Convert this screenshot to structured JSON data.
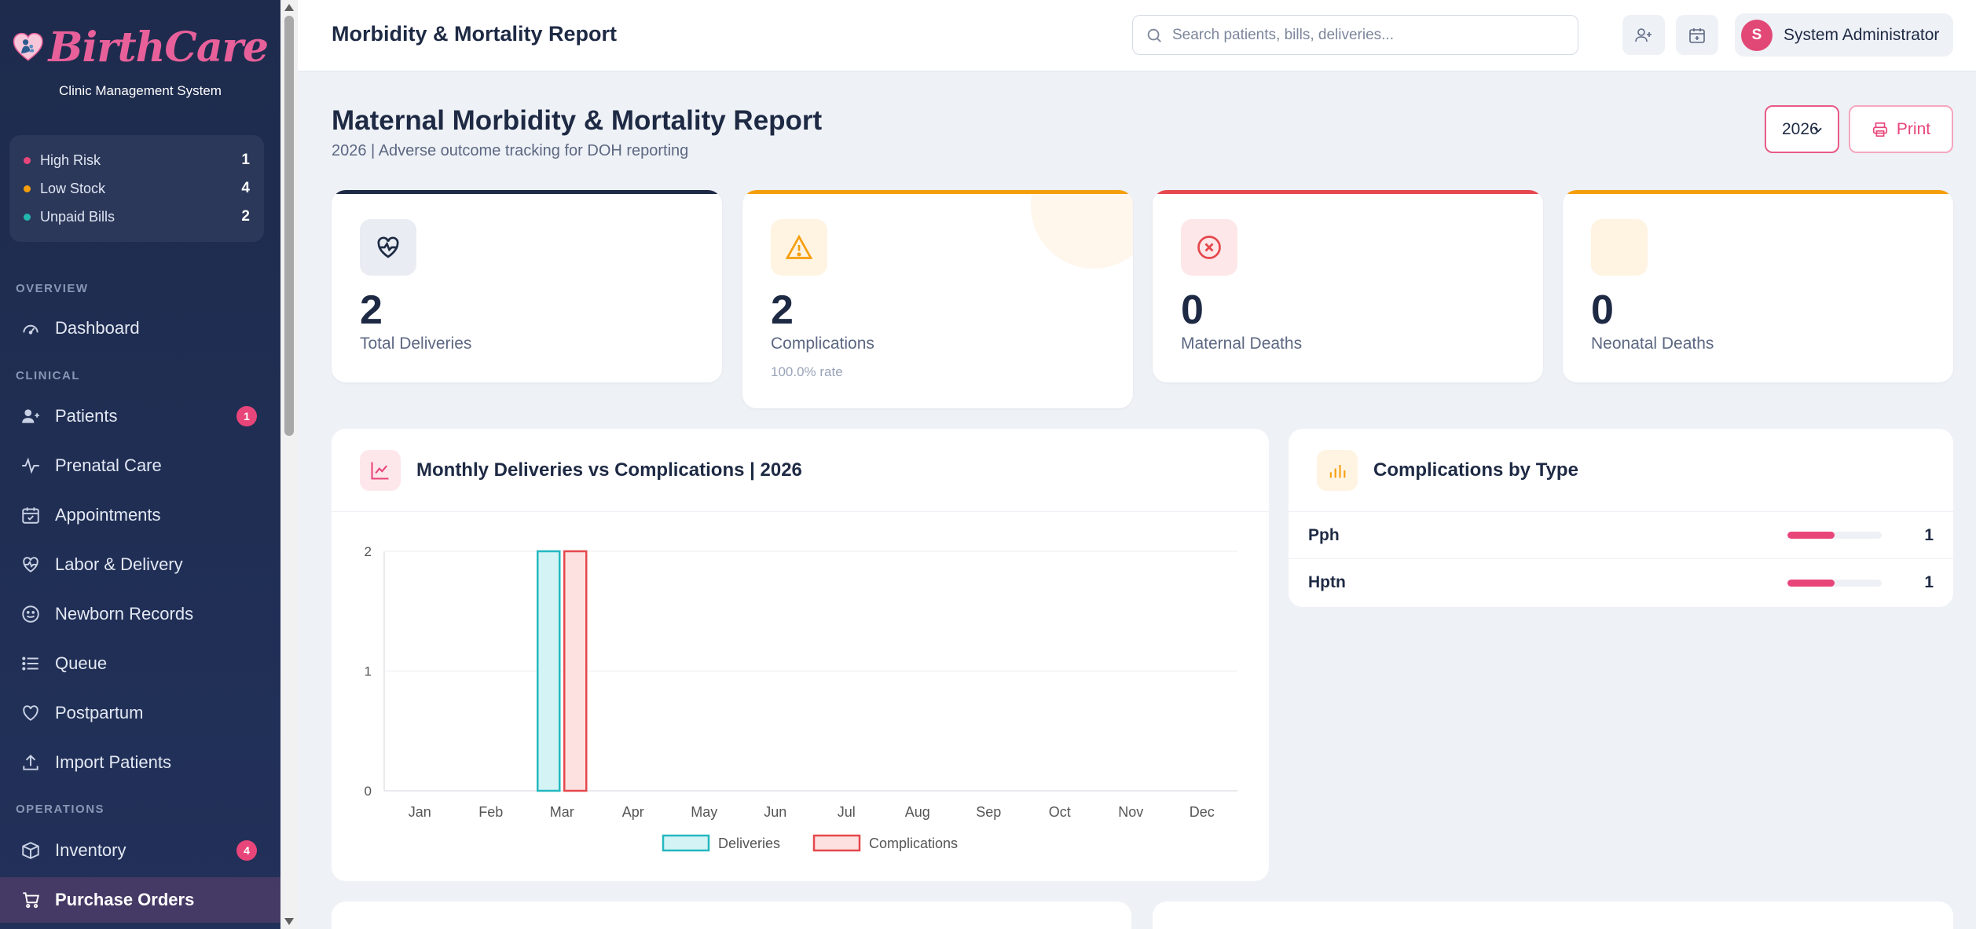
{
  "app": {
    "brand": "BirthCare",
    "subtitle": "Clinic Management System"
  },
  "alerts": [
    {
      "label": "High Risk",
      "count": "1",
      "color": "#e8467a"
    },
    {
      "label": "Low Stock",
      "count": "4",
      "color": "#f59e0b"
    },
    {
      "label": "Unpaid Bills",
      "count": "2",
      "color": "#22b8b0"
    }
  ],
  "nav": {
    "sections": {
      "overview": "OVERVIEW",
      "clinical": "CLINICAL",
      "operations": "OPERATIONS"
    },
    "items": [
      {
        "label": "Dashboard",
        "icon": "gauge-icon"
      },
      {
        "label": "Patients",
        "icon": "users-icon",
        "badge": "1"
      },
      {
        "label": "Prenatal Care",
        "icon": "activity-icon"
      },
      {
        "label": "Appointments",
        "icon": "calendar-check-icon"
      },
      {
        "label": "Labor & Delivery",
        "icon": "heart-pulse-icon"
      },
      {
        "label": "Newborn Records",
        "icon": "smile-icon"
      },
      {
        "label": "Queue",
        "icon": "list-icon"
      },
      {
        "label": "Postpartum",
        "icon": "heart-icon"
      },
      {
        "label": "Import Patients",
        "icon": "upload-icon"
      },
      {
        "label": "Inventory",
        "icon": "box-icon",
        "badge": "4"
      },
      {
        "label": "Purchase Orders",
        "icon": "cart-icon"
      }
    ]
  },
  "topbar": {
    "title": "Morbidity & Mortality Report",
    "search_placeholder": "Search patients, bills, deliveries...",
    "user_initial": "S",
    "user_name": "System Administrator"
  },
  "page": {
    "title": "Maternal Morbidity & Mortality Report",
    "subtitle": "2026 | Adverse outcome tracking for DOH reporting",
    "year": "2026",
    "print_label": "Print"
  },
  "stats": [
    {
      "value": "2",
      "label": "Total Deliveries",
      "accent": "#1e2a44"
    },
    {
      "value": "2",
      "label": "Complications",
      "note": "100.0% rate",
      "accent": "#f59e0b"
    },
    {
      "value": "0",
      "label": "Maternal Deaths",
      "accent": "#e5484d"
    },
    {
      "value": "0",
      "label": "Neonatal Deaths",
      "accent": "#f59e0b"
    }
  ],
  "chart_card": {
    "title": "Monthly Deliveries vs Complications | 2026"
  },
  "types_card": {
    "title": "Complications by Type",
    "rows": [
      {
        "name": "Pph",
        "count": "1",
        "fraction": 0.5
      },
      {
        "name": "Hptn",
        "count": "1",
        "fraction": 0.5
      }
    ]
  },
  "chart_data": {
    "type": "bar",
    "title": "Monthly Deliveries vs Complications | 2026",
    "categories": [
      "Jan",
      "Feb",
      "Mar",
      "Apr",
      "May",
      "Jun",
      "Jul",
      "Aug",
      "Sep",
      "Oct",
      "Nov",
      "Dec"
    ],
    "series": [
      {
        "name": "Deliveries",
        "values": [
          0,
          0,
          2,
          0,
          0,
          0,
          0,
          0,
          0,
          0,
          0,
          0
        ],
        "fill": "#d3f3f4",
        "stroke": "#22b8c0"
      },
      {
        "name": "Complications",
        "values": [
          0,
          0,
          2,
          0,
          0,
          0,
          0,
          0,
          0,
          0,
          0,
          0
        ],
        "fill": "#fde0e0",
        "stroke": "#e5484d"
      }
    ],
    "ylim": [
      0,
      2
    ],
    "yticks": [
      0,
      1,
      2
    ],
    "grid": true,
    "legend": "bottom"
  }
}
